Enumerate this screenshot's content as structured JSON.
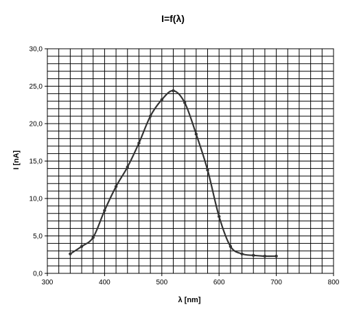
{
  "chart_data": {
    "type": "line",
    "title": "I=f(λ)",
    "xlabel": "λ [nm]",
    "ylabel": "I [nA]",
    "xlim": [
      300,
      800
    ],
    "ylim": [
      0,
      30
    ],
    "x_ticks": [
      "300",
      "400",
      "500",
      "600",
      "700",
      "800"
    ],
    "y_ticks": [
      "0,0",
      "5,0",
      "10,0",
      "15,0",
      "20,0",
      "25,0",
      "30,0"
    ],
    "grid": true,
    "legend": "none",
    "series": [
      {
        "x": [
          340,
          360,
          380,
          400,
          420,
          440,
          460,
          480,
          500,
          520,
          540,
          560,
          580,
          600,
          620,
          640,
          660,
          680,
          700
        ],
        "y": [
          2.6,
          3.6,
          4.8,
          8.4,
          11.6,
          14.2,
          17.4,
          21.0,
          23.2,
          24.4,
          22.8,
          18.6,
          13.8,
          7.6,
          3.6,
          2.6,
          2.4,
          2.3,
          2.3
        ]
      }
    ],
    "colors": {
      "line": "#333333",
      "grid": "#000000",
      "frame": "#000000"
    }
  }
}
